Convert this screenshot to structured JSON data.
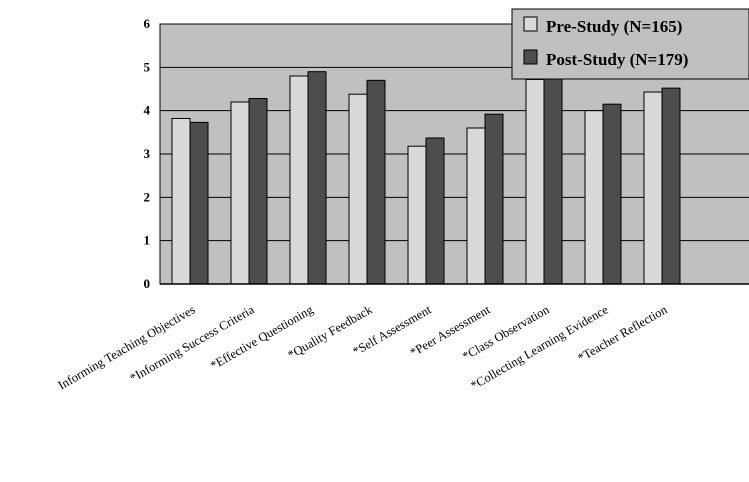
{
  "chart_data": {
    "type": "bar",
    "title": "",
    "xlabel": "",
    "ylabel": "",
    "ylim": [
      0,
      6
    ],
    "yticks": [
      "0",
      "1",
      "2",
      "3",
      "4",
      "5",
      "6"
    ],
    "grid": true,
    "legend_position": "top-right",
    "categories": [
      "Informing Teaching Objectives",
      "*Informing Success Criteria",
      "*Effective Questioning",
      "*Quality Feedback",
      "*Self Assessment",
      "*Peer Assessment",
      "*Class Observation",
      "*Collecting Learning Evidence",
      "*Teacher Reflection"
    ],
    "series": [
      {
        "name": "Pre-Study (N=165)",
        "color": "#d9d9d9",
        "values": [
          3.82,
          4.2,
          4.8,
          4.38,
          3.18,
          3.6,
          4.72,
          4.0,
          4.43
        ]
      },
      {
        "name": "Post-Study (N=179)",
        "color": "#4d4d4d",
        "values": [
          3.73,
          4.28,
          4.9,
          4.7,
          3.37,
          3.92,
          5.0,
          4.15,
          4.52
        ]
      }
    ],
    "colors": {
      "plot_background": "#c0c0c0",
      "gridline": "#000000"
    }
  }
}
